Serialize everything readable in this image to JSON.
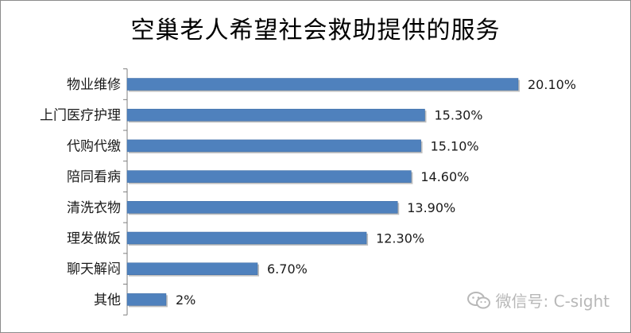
{
  "chart_data": {
    "type": "bar",
    "orientation": "horizontal",
    "title": "空巢老人希望社会救助提供的服务",
    "categories": [
      "物业维修",
      "上门医疗护理",
      "代购代缴",
      "陪同看病",
      "清洗衣物",
      "理发做饭",
      "聊天解闷",
      "其他"
    ],
    "values": [
      20.1,
      15.3,
      15.1,
      14.6,
      13.9,
      12.3,
      6.7,
      2
    ],
    "value_labels": [
      "20.10%",
      "15.30%",
      "15.10%",
      "14.60%",
      "13.90%",
      "12.30%",
      "6.70%",
      "2%"
    ],
    "unit": "%",
    "xlim": [
      0,
      20.1
    ],
    "grid": false,
    "legend": "none",
    "bar_color": "#4f81bd"
  },
  "watermark": {
    "icon": "wechat-icon",
    "text": "微信号: C-sight"
  }
}
